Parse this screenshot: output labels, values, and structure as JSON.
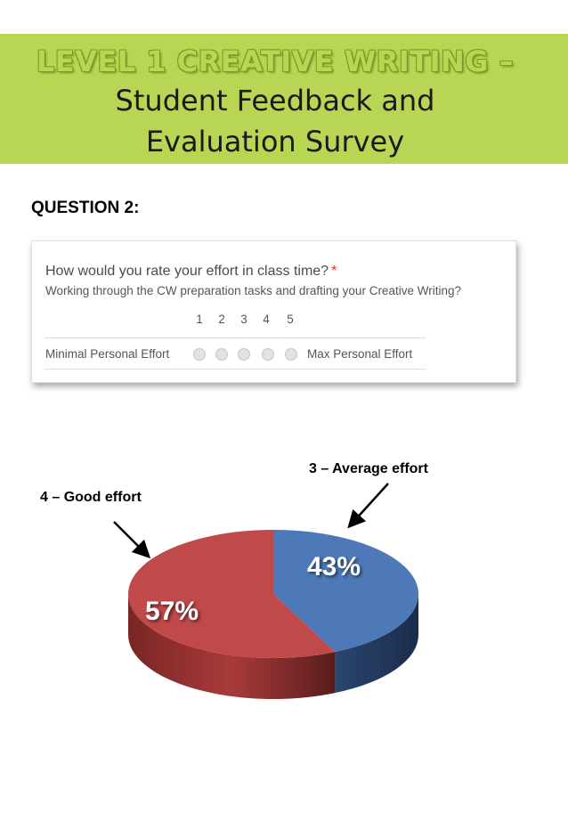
{
  "banner": {
    "title": "LEVEL 1 CREATIVE WRITING –",
    "subtitle_line1": "Student Feedback and",
    "subtitle_line2": "Evaluation Survey"
  },
  "question_heading": "QUESTION 2:",
  "form": {
    "question": "How would you rate your effort in class time?",
    "required_mark": "*",
    "description": "Working through the CW preparation tasks and drafting your Creative Writing?",
    "scale": [
      "1",
      "2",
      "3",
      "4",
      "5"
    ],
    "min_label": "Minimal Personal Effort",
    "max_label": "Max Personal Effort"
  },
  "callouts": {
    "average": "3 – Average effort",
    "good": "4 – Good effort"
  },
  "colors": {
    "banner": "#b9d554",
    "slice_average": "#4e79b8",
    "slice_good": "#c0494a"
  },
  "chart_data": {
    "type": "pie",
    "categories": [
      "3 – Average effort",
      "4 – Good effort"
    ],
    "values": [
      43,
      57
    ],
    "labels": [
      "43%",
      "57%"
    ],
    "colors": [
      "#4e79b8",
      "#c0494a"
    ],
    "style": "3d"
  }
}
